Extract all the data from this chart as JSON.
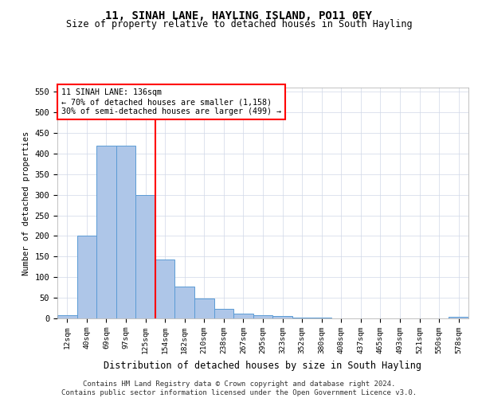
{
  "title": "11, SINAH LANE, HAYLING ISLAND, PO11 0EY",
  "subtitle": "Size of property relative to detached houses in South Hayling",
  "xlabel": "Distribution of detached houses by size in South Hayling",
  "ylabel": "Number of detached properties",
  "categories": [
    "12sqm",
    "40sqm",
    "69sqm",
    "97sqm",
    "125sqm",
    "154sqm",
    "182sqm",
    "210sqm",
    "238sqm",
    "267sqm",
    "295sqm",
    "323sqm",
    "352sqm",
    "380sqm",
    "408sqm",
    "437sqm",
    "465sqm",
    "493sqm",
    "521sqm",
    "550sqm",
    "578sqm"
  ],
  "values": [
    8,
    200,
    420,
    420,
    300,
    143,
    77,
    48,
    23,
    11,
    8,
    6,
    1,
    1,
    0,
    0,
    0,
    0,
    0,
    0,
    3
  ],
  "bar_color": "#aec6e8",
  "bar_edge_color": "#5b9bd5",
  "property_line_index": 4,
  "property_line_color": "red",
  "annotation_text": "11 SINAH LANE: 136sqm\n← 70% of detached houses are smaller (1,158)\n30% of semi-detached houses are larger (499) →",
  "ylim": [
    0,
    560
  ],
  "yticks": [
    0,
    50,
    100,
    150,
    200,
    250,
    300,
    350,
    400,
    450,
    500,
    550
  ],
  "footer_line1": "Contains HM Land Registry data © Crown copyright and database right 2024.",
  "footer_line2": "Contains public sector information licensed under the Open Government Licence v3.0.",
  "background_color": "#ffffff",
  "grid_color": "#d0d8e8"
}
